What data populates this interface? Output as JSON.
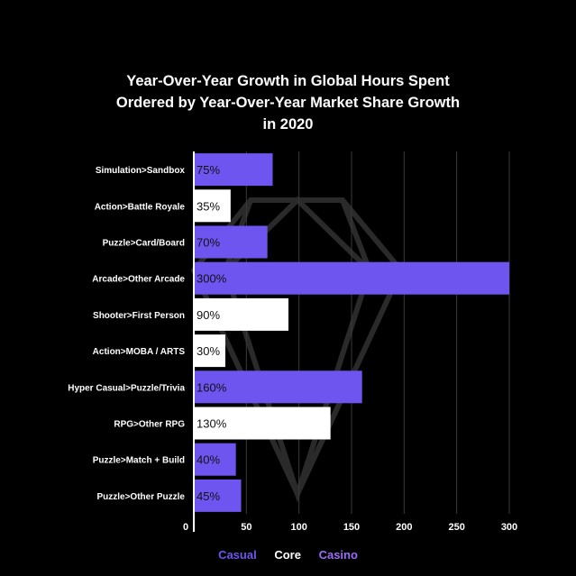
{
  "chart_data": {
    "type": "bar",
    "orientation": "horizontal",
    "title_lines": [
      "Year-Over-Year Growth in Global Hours Spent",
      "Ordered by Year-Over-Year Market Share Growth",
      "in 2020"
    ],
    "categories": [
      "Simulation>Sandbox",
      "Action>Battle Royale",
      "Puzzle>Card/Board",
      "Arcade>Other Arcade",
      "Shooter>First Person",
      "Action>MOBA / ARTS",
      "Hyper Casual>Puzzle/Trivia",
      "RPG>Other RPG",
      "Puzzle>Match + Build",
      "Puzzle>Other Puzzle"
    ],
    "values": [
      75,
      35,
      70,
      300,
      90,
      30,
      160,
      130,
      40,
      45
    ],
    "data_labels": [
      "75%",
      "35%",
      "70%",
      "300%",
      "90%",
      "30%",
      "160%",
      "130%",
      "40%",
      "45%"
    ],
    "groups": [
      "Casual",
      "Core",
      "Casual",
      "Casual",
      "Core",
      "Core",
      "Casual",
      "Core",
      "Casual",
      "Casual"
    ],
    "xlim": [
      0,
      300
    ],
    "xticks": [
      0,
      50,
      100,
      150,
      200,
      250,
      300
    ],
    "grid": "vertical",
    "legend": {
      "placement": "bottom",
      "items": [
        {
          "name": "Casual",
          "color": "#6e55f0"
        },
        {
          "name": "Core",
          "color": "#ffffff"
        },
        {
          "name": "Casino",
          "color": "#9b6cf5"
        }
      ]
    },
    "colors": {
      "Casual": "#6e55f0",
      "Core": "#ffffff",
      "label_on_casual": "#111111",
      "label_on_core": "#111111",
      "background": "#000000",
      "grid": "#3a3a3a",
      "axis": "#ffffff"
    }
  }
}
